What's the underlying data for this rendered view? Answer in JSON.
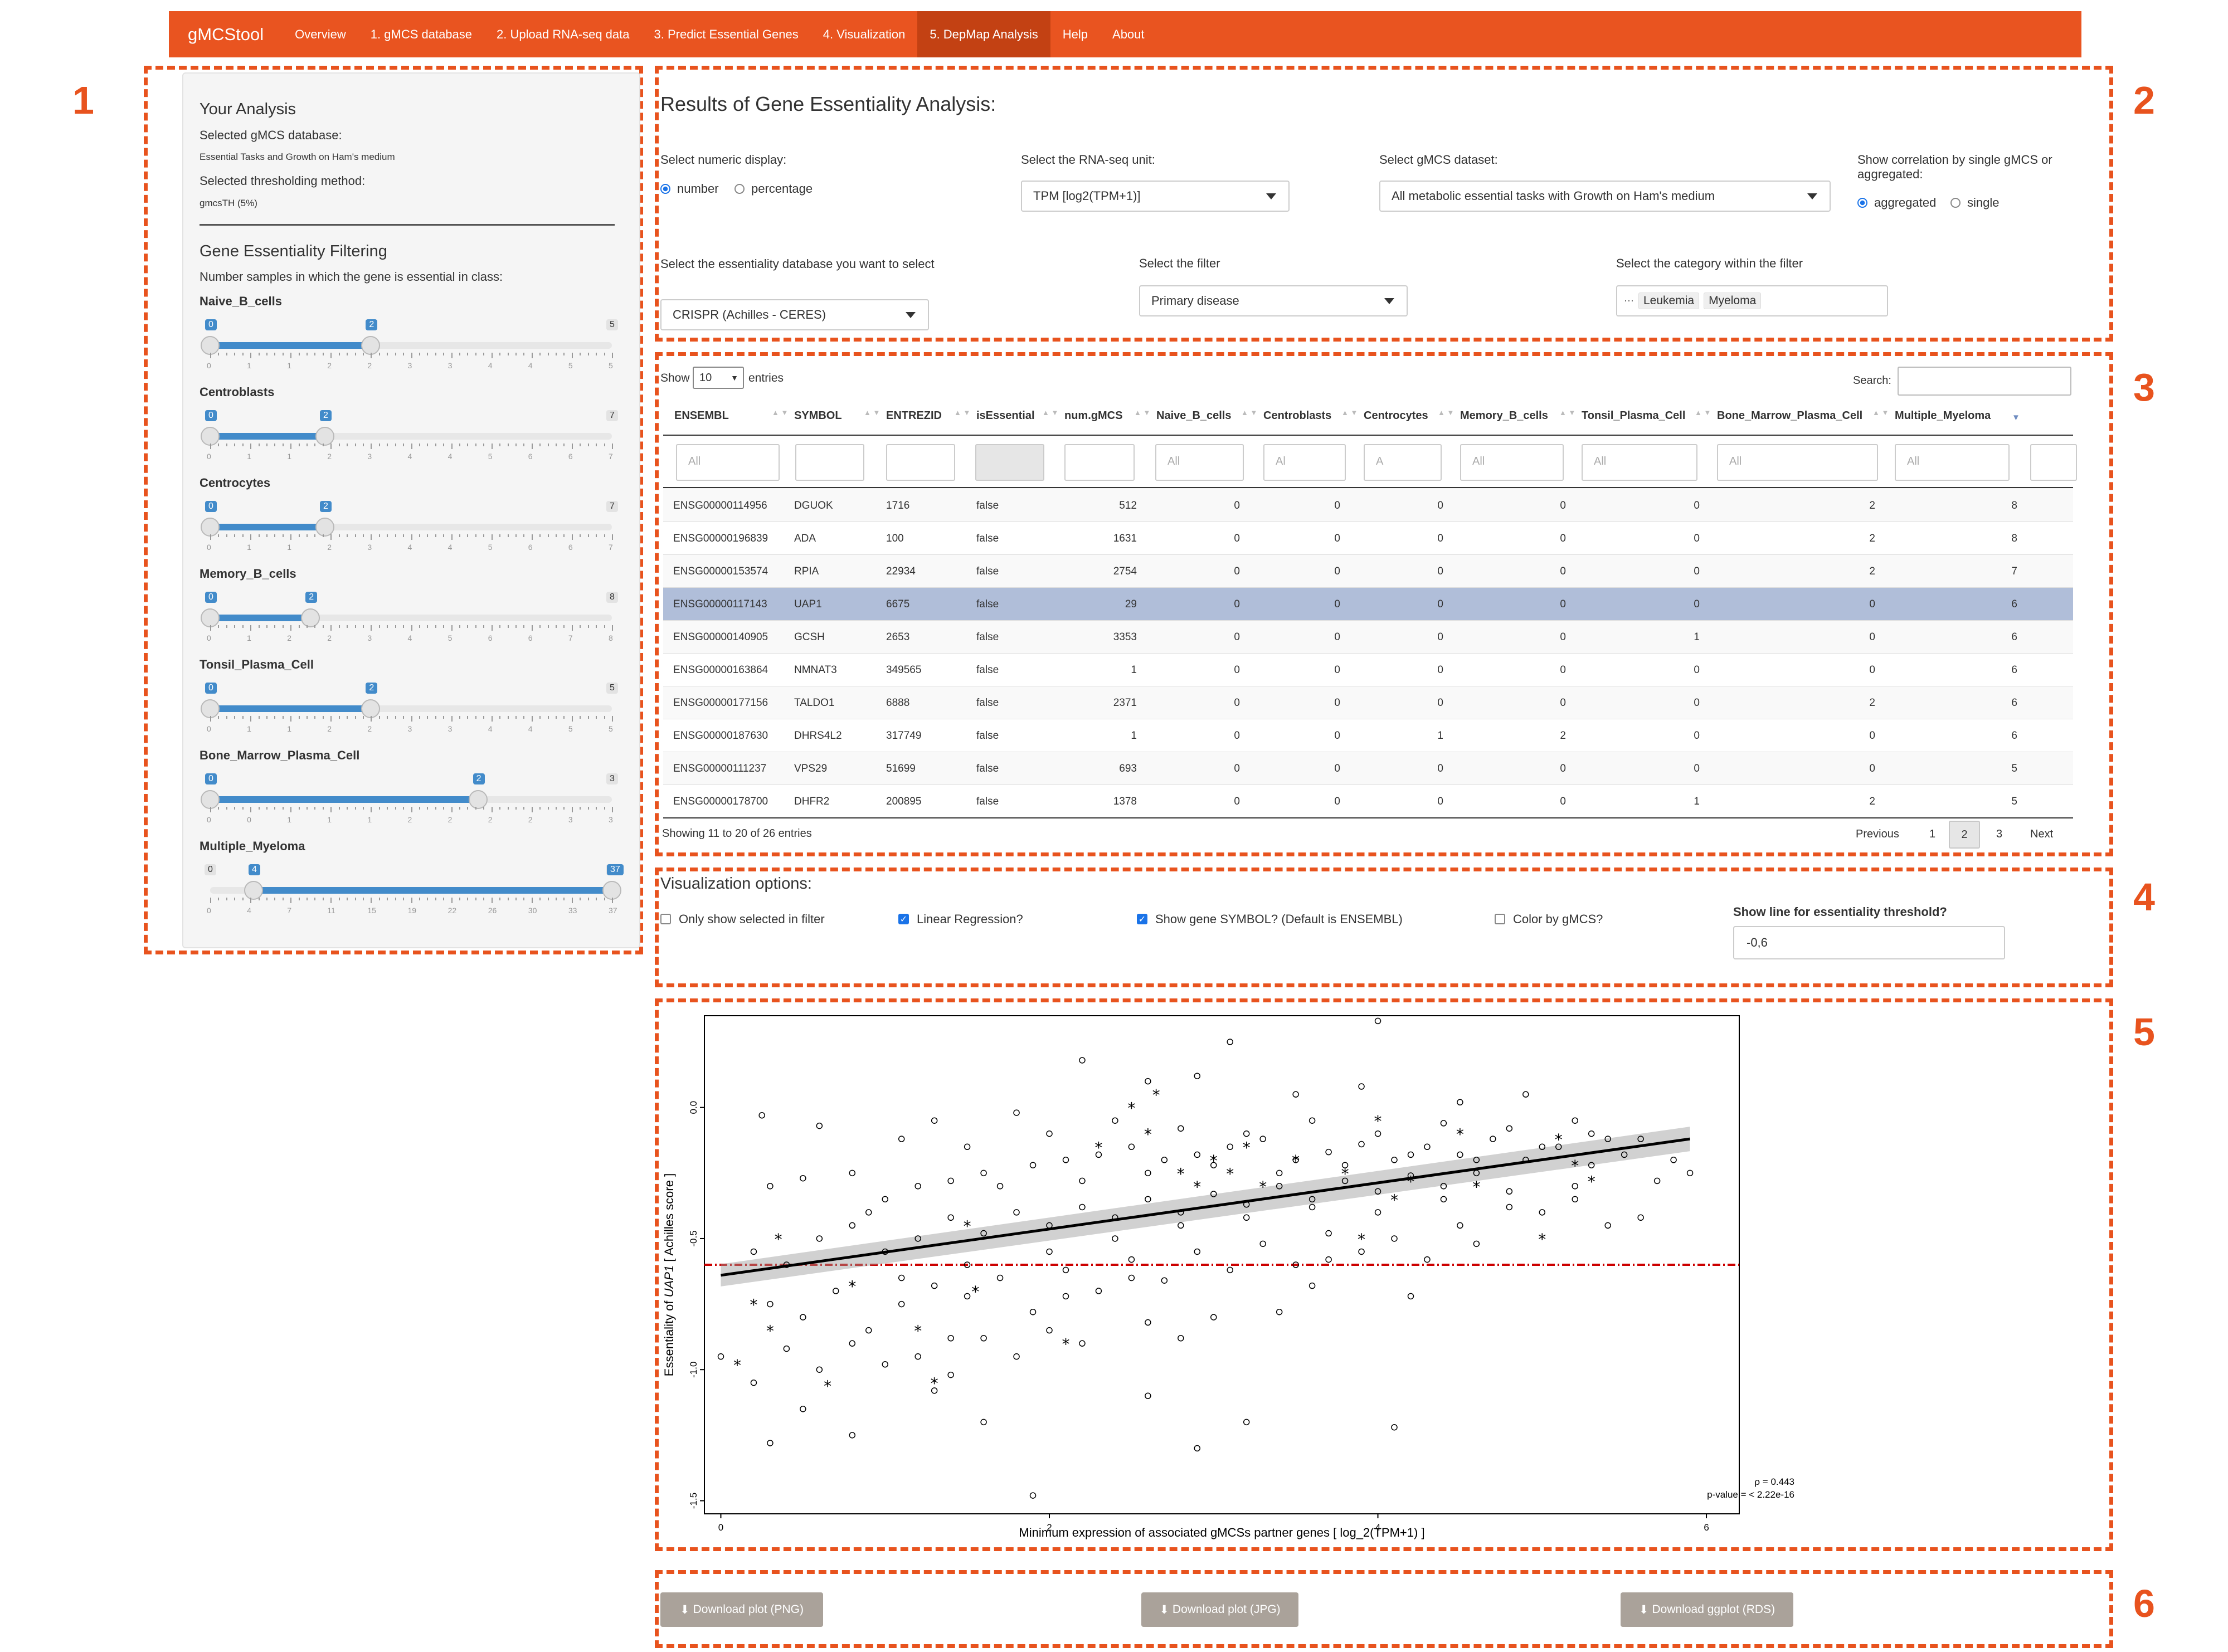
{
  "nav": {
    "brand": "gMCStool",
    "items": [
      "Overview",
      "1. gMCS database",
      "2. Upload RNA-seq data",
      "3. Predict Essential Genes",
      "4. Visualization",
      "5. DepMap Analysis",
      "Help",
      "About"
    ],
    "active": "5. DepMap Analysis"
  },
  "callouts": [
    "1",
    "2",
    "3",
    "4",
    "5",
    "6"
  ],
  "sidebar": {
    "your_analysis": "Your Analysis",
    "db_label": "Selected gMCS database:",
    "db_value": "Essential Tasks and Growth on Ham's medium",
    "thr_label": "Selected thresholding method:",
    "thr_value": "gmcsTH (5%)",
    "filter_title": "Gene Essentiality Filtering",
    "filter_desc": "Number samples in which the gene is essential in class:",
    "sliders": [
      {
        "label": "Naive_B_cells",
        "from": 0,
        "to": 2,
        "max": 5,
        "ticks": [
          "0",
          "1",
          "1",
          "2",
          "2",
          "3",
          "3",
          "4",
          "4",
          "5",
          "5"
        ]
      },
      {
        "label": "Centroblasts",
        "from": 0,
        "to": 2,
        "max": 7,
        "ticks": [
          "0",
          "1",
          "1",
          "2",
          "3",
          "4",
          "4",
          "5",
          "6",
          "6",
          "7"
        ]
      },
      {
        "label": "Centrocytes",
        "from": 0,
        "to": 2,
        "max": 7,
        "ticks": [
          "0",
          "1",
          "1",
          "2",
          "3",
          "4",
          "4",
          "5",
          "6",
          "6",
          "7"
        ]
      },
      {
        "label": "Memory_B_cells",
        "from": 0,
        "to": 2,
        "max": 8,
        "ticks": [
          "0",
          "1",
          "2",
          "2",
          "3",
          "4",
          "5",
          "6",
          "6",
          "7",
          "8"
        ]
      },
      {
        "label": "Tonsil_Plasma_Cell",
        "from": 0,
        "to": 2,
        "max": 5,
        "ticks": [
          "0",
          "1",
          "1",
          "2",
          "2",
          "3",
          "3",
          "4",
          "4",
          "5",
          "5"
        ]
      },
      {
        "label": "Bone_Marrow_Plasma_Cell",
        "from": 0,
        "to": 2,
        "max": 3,
        "ticks": [
          "0",
          "0",
          "1",
          "1",
          "1",
          "2",
          "2",
          "2",
          "2",
          "3",
          "3"
        ]
      },
      {
        "label": "Multiple_Myeloma",
        "from": 4,
        "to": 37,
        "min": 0,
        "max": 37,
        "ticks": [
          "0",
          "4",
          "7",
          "11",
          "15",
          "19",
          "22",
          "26",
          "30",
          "33",
          "37"
        ]
      }
    ]
  },
  "results": {
    "title": "Results of Gene Essentiality Analysis:",
    "numeric_display_label": "Select numeric display:",
    "numeric_options": [
      "number",
      "percentage"
    ],
    "numeric_selected": "number",
    "rnaseq_unit_label": "Select the RNA-seq unit:",
    "rnaseq_unit_value": "TPM [log2(TPM+1)]",
    "dataset_label": "Select gMCS dataset:",
    "dataset_value": "All metabolic essential tasks with Growth on Ham's medium",
    "corr_label": "Show correlation by single gMCS or aggregated:",
    "corr_options": [
      "aggregated",
      "single"
    ],
    "corr_selected": "aggregated",
    "ess_db_label": "Select the essentiality database you want to select",
    "ess_db_value": "CRISPR (Achilles - CERES)",
    "filter_label": "Select the filter",
    "filter_value": "Primary disease",
    "category_label": "Select the category within the filter",
    "category_tags": [
      "Leukemia",
      "Myeloma"
    ]
  },
  "table": {
    "show_label": "Show",
    "show_value": "10",
    "entries_label": "entries",
    "search_label": "Search:",
    "columns": [
      "ENSEMBL",
      "SYMBOL",
      "ENTREZID",
      "isEssential",
      "num.gMCS",
      "Naive_B_cells",
      "Centroblasts",
      "Centrocytes",
      "Memory_B_cells",
      "Tonsil_Plasma_Cell",
      "Bone_Marrow_Plasma_Cell",
      "Multiple_Myeloma"
    ],
    "filter_placeholders": [
      "All",
      "",
      "",
      "",
      "",
      "All",
      "Al",
      "A",
      "All",
      "All",
      "All",
      "All",
      ""
    ],
    "rows": [
      [
        "ENSG00000114956",
        "DGUOK",
        "1716",
        "false",
        "512",
        "0",
        "0",
        "0",
        "0",
        "0",
        "2",
        "8"
      ],
      [
        "ENSG00000196839",
        "ADA",
        "100",
        "false",
        "1631",
        "0",
        "0",
        "0",
        "0",
        "0",
        "2",
        "8"
      ],
      [
        "ENSG00000153574",
        "RPIA",
        "22934",
        "false",
        "2754",
        "0",
        "0",
        "0",
        "0",
        "0",
        "2",
        "7"
      ],
      [
        "ENSG00000117143",
        "UAP1",
        "6675",
        "false",
        "29",
        "0",
        "0",
        "0",
        "0",
        "0",
        "0",
        "6"
      ],
      [
        "ENSG00000140905",
        "GCSH",
        "2653",
        "false",
        "3353",
        "0",
        "0",
        "0",
        "0",
        "1",
        "0",
        "6"
      ],
      [
        "ENSG00000163864",
        "NMNAT3",
        "349565",
        "false",
        "1",
        "0",
        "0",
        "0",
        "0",
        "0",
        "0",
        "6"
      ],
      [
        "ENSG00000177156",
        "TALDO1",
        "6888",
        "false",
        "2371",
        "0",
        "0",
        "0",
        "0",
        "0",
        "2",
        "6"
      ],
      [
        "ENSG00000187630",
        "DHRS4L2",
        "317749",
        "false",
        "1",
        "0",
        "0",
        "1",
        "2",
        "0",
        "0",
        "6"
      ],
      [
        "ENSG00000111237",
        "VPS29",
        "51699",
        "false",
        "693",
        "0",
        "0",
        "0",
        "0",
        "0",
        "0",
        "5"
      ],
      [
        "ENSG00000178700",
        "DHFR2",
        "200895",
        "false",
        "1378",
        "0",
        "0",
        "0",
        "0",
        "1",
        "2",
        "5"
      ]
    ],
    "selected_row": 3,
    "info": "Showing 11 to 20 of 26 entries",
    "pager": [
      "Previous",
      "1",
      "2",
      "3",
      "Next"
    ],
    "current_page": "2"
  },
  "viz": {
    "title": "Visualization options:",
    "only_selected": "Only show selected in filter",
    "linear_regression": "Linear Regression?",
    "show_symbol": "Show gene SYMBOL? (Default is ENSEMBL)",
    "color_by_gmcs": "Color by gMCS?",
    "threshold_label": "Show line for essentiality threshold?",
    "threshold_value": "-0,6",
    "checked": {
      "only_selected": false,
      "linear_regression": true,
      "show_symbol": true,
      "color_by_gmcs": false
    }
  },
  "chart_data": {
    "type": "scatter",
    "title": "",
    "xlabel": "Minimum expression of associated gMCSs partner genes [ log_2(TPM+1) ]",
    "ylabel": "Essentiality of UAP1 [ Achilles score ]",
    "ylabel_prefix": "Essentiality of ",
    "ylabel_gene": "UAP1",
    "ylabel_suffix": " [ Achilles score ]",
    "xlim": [
      -0.1,
      6.2
    ],
    "ylim": [
      -1.55,
      0.35
    ],
    "xticks": [
      0,
      2,
      4,
      6
    ],
    "yticks": [
      0.0,
      -0.5,
      -1.0,
      -1.5
    ],
    "ytick_labels": [
      "0.0",
      "-0.5",
      "-1.0",
      "-1.5"
    ],
    "regression": {
      "x": [
        0.0,
        5.9
      ],
      "y": [
        -0.64,
        -0.12
      ]
    },
    "threshold": -0.6,
    "annotation_rho": "ρ = 0.443",
    "annotation_p": "p-value = < 2.22e-16",
    "series": [
      {
        "marker": "circle",
        "points": [
          [
            0.25,
            -0.03
          ],
          [
            0.6,
            -0.07
          ],
          [
            1.1,
            -0.12
          ],
          [
            1.8,
            -0.02
          ],
          [
            2.2,
            0.18
          ],
          [
            2.9,
            0.12
          ],
          [
            3.5,
            0.05
          ],
          [
            3.9,
            0.08
          ],
          [
            4.5,
            0.02
          ],
          [
            4.9,
            0.05
          ],
          [
            5.3,
            -0.1
          ],
          [
            0.3,
            -0.3
          ],
          [
            0.5,
            -0.27
          ],
          [
            0.8,
            -0.25
          ],
          [
            1.0,
            -0.35
          ],
          [
            1.2,
            -0.3
          ],
          [
            1.4,
            -0.28
          ],
          [
            1.6,
            -0.25
          ],
          [
            1.9,
            -0.22
          ],
          [
            2.1,
            -0.2
          ],
          [
            2.3,
            -0.18
          ],
          [
            2.5,
            -0.15
          ],
          [
            2.7,
            -0.2
          ],
          [
            2.9,
            -0.18
          ],
          [
            3.1,
            -0.15
          ],
          [
            3.3,
            -0.12
          ],
          [
            3.5,
            -0.2
          ],
          [
            3.7,
            -0.17
          ],
          [
            3.9,
            -0.14
          ],
          [
            4.1,
            -0.2
          ],
          [
            4.3,
            -0.15
          ],
          [
            4.5,
            -0.18
          ],
          [
            4.7,
            -0.12
          ],
          [
            4.9,
            -0.2
          ],
          [
            5.1,
            -0.15
          ],
          [
            5.3,
            -0.22
          ],
          [
            5.5,
            -0.18
          ],
          [
            5.7,
            -0.28
          ],
          [
            5.9,
            -0.25
          ],
          [
            0.2,
            -0.55
          ],
          [
            0.4,
            -0.6
          ],
          [
            0.6,
            -0.5
          ],
          [
            0.8,
            -0.45
          ],
          [
            1.0,
            -0.55
          ],
          [
            1.2,
            -0.5
          ],
          [
            1.4,
            -0.42
          ],
          [
            1.6,
            -0.48
          ],
          [
            1.8,
            -0.4
          ],
          [
            2.0,
            -0.45
          ],
          [
            2.2,
            -0.38
          ],
          [
            2.4,
            -0.42
          ],
          [
            2.6,
            -0.35
          ],
          [
            2.8,
            -0.4
          ],
          [
            3.0,
            -0.33
          ],
          [
            3.2,
            -0.37
          ],
          [
            3.4,
            -0.3
          ],
          [
            3.6,
            -0.35
          ],
          [
            3.8,
            -0.28
          ],
          [
            4.0,
            -0.32
          ],
          [
            4.2,
            -0.26
          ],
          [
            4.4,
            -0.3
          ],
          [
            4.6,
            -0.25
          ],
          [
            4.8,
            -0.32
          ],
          [
            5.0,
            -0.4
          ],
          [
            5.2,
            -0.35
          ],
          [
            5.4,
            -0.45
          ],
          [
            5.6,
            -0.42
          ],
          [
            0.3,
            -0.75
          ],
          [
            0.5,
            -0.8
          ],
          [
            0.7,
            -0.7
          ],
          [
            0.9,
            -0.85
          ],
          [
            1.1,
            -0.75
          ],
          [
            1.3,
            -0.68
          ],
          [
            1.5,
            -0.72
          ],
          [
            1.7,
            -0.65
          ],
          [
            1.9,
            -0.78
          ],
          [
            2.1,
            -0.62
          ],
          [
            2.3,
            -0.7
          ],
          [
            2.5,
            -0.58
          ],
          [
            2.7,
            -0.66
          ],
          [
            2.9,
            -0.55
          ],
          [
            3.1,
            -0.62
          ],
          [
            3.3,
            -0.52
          ],
          [
            3.5,
            -0.6
          ],
          [
            3.7,
            -0.48
          ],
          [
            3.9,
            -0.55
          ],
          [
            4.1,
            -0.5
          ],
          [
            4.3,
            -0.58
          ],
          [
            4.5,
            -0.45
          ],
          [
            0.0,
            -0.95
          ],
          [
            0.2,
            -1.05
          ],
          [
            0.4,
            -0.92
          ],
          [
            0.6,
            -1.0
          ],
          [
            0.8,
            -0.9
          ],
          [
            1.0,
            -0.98
          ],
          [
            1.3,
            -1.08
          ],
          [
            1.6,
            -0.88
          ],
          [
            2.0,
            -0.85
          ],
          [
            2.6,
            -0.82
          ],
          [
            3.0,
            -0.8
          ],
          [
            3.4,
            -0.78
          ],
          [
            4.2,
            -0.72
          ],
          [
            0.3,
            -1.28
          ],
          [
            0.8,
            -1.25
          ],
          [
            1.6,
            -1.2
          ],
          [
            2.6,
            -1.1
          ],
          [
            3.2,
            -1.2
          ],
          [
            4.1,
            -1.22
          ],
          [
            1.9,
            -1.48
          ],
          [
            2.9,
            -1.3
          ],
          [
            4.0,
            0.33
          ],
          [
            3.1,
            0.25
          ],
          [
            2.6,
            0.1
          ],
          [
            1.5,
            -0.15
          ],
          [
            1.3,
            -0.05
          ],
          [
            2.0,
            -0.1
          ],
          [
            2.4,
            -0.05
          ],
          [
            2.8,
            -0.08
          ],
          [
            3.2,
            -0.1
          ],
          [
            3.6,
            -0.05
          ],
          [
            4.0,
            -0.1
          ],
          [
            4.4,
            -0.06
          ],
          [
            4.8,
            -0.08
          ],
          [
            5.2,
            -0.05
          ],
          [
            5.6,
            -0.12
          ],
          [
            1.1,
            -0.65
          ],
          [
            1.5,
            -0.6
          ],
          [
            2.0,
            -0.55
          ],
          [
            2.4,
            -0.5
          ],
          [
            2.8,
            -0.45
          ],
          [
            3.2,
            -0.42
          ],
          [
            3.6,
            -0.38
          ],
          [
            4.0,
            -0.4
          ],
          [
            4.4,
            -0.35
          ],
          [
            4.8,
            -0.38
          ],
          [
            5.2,
            -0.3
          ],
          [
            5.8,
            -0.2
          ],
          [
            0.9,
            -0.4
          ],
          [
            1.7,
            -0.3
          ],
          [
            2.2,
            -0.28
          ],
          [
            2.6,
            -0.25
          ],
          [
            3.0,
            -0.22
          ],
          [
            3.4,
            -0.25
          ],
          [
            3.8,
            -0.22
          ],
          [
            4.2,
            -0.18
          ],
          [
            4.6,
            -0.2
          ],
          [
            5.0,
            -0.15
          ],
          [
            5.4,
            -0.12
          ],
          [
            1.4,
            -0.88
          ],
          [
            1.8,
            -0.95
          ],
          [
            2.2,
            -0.9
          ],
          [
            2.8,
            -0.88
          ],
          [
            3.6,
            -0.68
          ],
          [
            1.2,
            -0.95
          ],
          [
            0.5,
            -1.15
          ],
          [
            1.4,
            -1.02
          ],
          [
            2.1,
            -0.72
          ],
          [
            2.5,
            -0.65
          ],
          [
            3.7,
            -0.58
          ],
          [
            4.6,
            -0.52
          ]
        ]
      },
      {
        "marker": "asterisk",
        "points": [
          [
            0.35,
            -0.5
          ],
          [
            0.2,
            -0.75
          ],
          [
            0.3,
            -0.85
          ],
          [
            0.1,
            -0.98
          ],
          [
            0.65,
            -1.06
          ],
          [
            0.8,
            -0.68
          ],
          [
            1.2,
            -0.85
          ],
          [
            1.3,
            -1.05
          ],
          [
            1.5,
            -0.45
          ],
          [
            1.55,
            -0.7
          ],
          [
            2.3,
            -0.15
          ],
          [
            2.5,
            0.0
          ],
          [
            2.6,
            -0.1
          ],
          [
            2.65,
            0.05
          ],
          [
            2.8,
            -0.25
          ],
          [
            2.9,
            -0.3
          ],
          [
            3.0,
            -0.2
          ],
          [
            3.1,
            -0.25
          ],
          [
            3.3,
            -0.3
          ],
          [
            3.2,
            -0.15
          ],
          [
            3.5,
            -0.2
          ],
          [
            3.8,
            -0.25
          ],
          [
            4.1,
            -0.35
          ],
          [
            4.2,
            -0.28
          ],
          [
            4.0,
            -0.05
          ],
          [
            4.5,
            -0.1
          ],
          [
            4.6,
            -0.3
          ],
          [
            5.0,
            -0.5
          ],
          [
            5.1,
            -0.12
          ],
          [
            5.2,
            -0.22
          ],
          [
            5.3,
            -0.28
          ],
          [
            3.9,
            -0.5
          ],
          [
            2.1,
            -0.9
          ]
        ]
      }
    ]
  },
  "downloads": [
    "Download plot (PNG)",
    "Download plot (JPG)",
    "Download ggplot (RDS)"
  ],
  "colors": {
    "accent": "#e95420",
    "callout": "#e8531e",
    "slider": "#428bca",
    "threshold": "#cc0000"
  }
}
